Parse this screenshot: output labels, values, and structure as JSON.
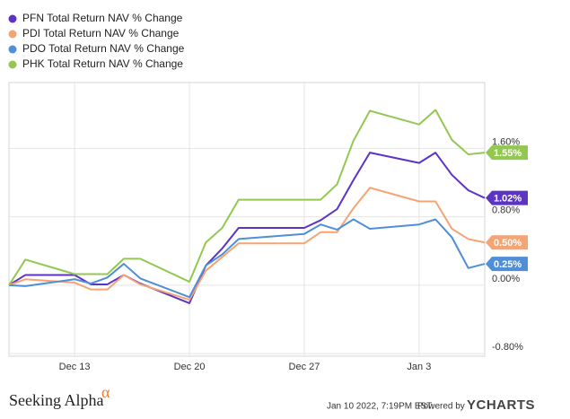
{
  "chart_data": {
    "type": "line",
    "x": [
      "Dec 9",
      "Dec 10",
      "Dec 13",
      "Dec 14",
      "Dec 15",
      "Dec 16",
      "Dec 17",
      "Dec 20",
      "Dec 21",
      "Dec 22",
      "Dec 23",
      "Dec 27",
      "Dec 28",
      "Dec 29",
      "Dec 30",
      "Dec 31",
      "Jan 3",
      "Jan 4",
      "Jan 5",
      "Jan 6",
      "Jan 7"
    ],
    "xlim": [
      "Dec 9",
      "Jan 7"
    ],
    "xticks": [
      "Dec 13",
      "Dec 20",
      "Dec 27",
      "Jan 3"
    ],
    "ylim": [
      -0.83,
      2.37
    ],
    "yticks": [
      {
        "value": 1.6,
        "label": "1.60%"
      },
      {
        "value": 0.8,
        "label": "0.80%"
      },
      {
        "value": 0,
        "label": "0.00%"
      },
      {
        "value": -0.8,
        "label": "-0.80%"
      }
    ],
    "grid": true,
    "legend": "top-left",
    "series": [
      {
        "name": "PFN Total Return NAV % Change",
        "color": "#5b34c6",
        "values": [
          0,
          0.12,
          0.12,
          0.01,
          0.01,
          0.12,
          0.02,
          -0.21,
          0.23,
          0.43,
          0.67,
          0.67,
          0.76,
          0.89,
          1.23,
          1.55,
          1.43,
          1.55,
          1.29,
          1.11,
          1.02
        ],
        "end_label": "1.02%"
      },
      {
        "name": "PDI Total Return NAV % Change",
        "color": "#f5a473",
        "values": [
          0,
          0.07,
          0.03,
          -0.05,
          -0.05,
          0.12,
          0.01,
          -0.17,
          0.17,
          0.33,
          0.49,
          0.49,
          0.62,
          0.62,
          0.9,
          1.14,
          0.98,
          0.98,
          0.66,
          0.54,
          0.5
        ],
        "end_label": "0.50%"
      },
      {
        "name": "PDO Total Return NAV % Change",
        "color": "#4f8ed8",
        "values": [
          0,
          -0.01,
          0.07,
          0.02,
          0.09,
          0.25,
          0.08,
          -0.14,
          0.23,
          0.36,
          0.54,
          0.6,
          0.71,
          0.65,
          0.77,
          0.66,
          0.71,
          0.77,
          0.56,
          0.2,
          0.25
        ],
        "end_label": "0.25%"
      },
      {
        "name": "PHK Total Return NAV % Change",
        "color": "#92c850",
        "values": [
          0,
          0.3,
          0.13,
          0.13,
          0.13,
          0.31,
          0.31,
          0.04,
          0.5,
          0.67,
          1.0,
          1.0,
          1.0,
          1.18,
          1.69,
          2.04,
          1.88,
          2.05,
          1.7,
          1.53,
          1.55
        ],
        "end_label": "1.55%"
      }
    ]
  },
  "footer": {
    "brand": "Seeking Alpha",
    "symbol": "α",
    "timestamp": "Jan 10 2022, 7:19PM EST.",
    "powered_by": "Powered by",
    "ycharts": "YCHARTS"
  }
}
